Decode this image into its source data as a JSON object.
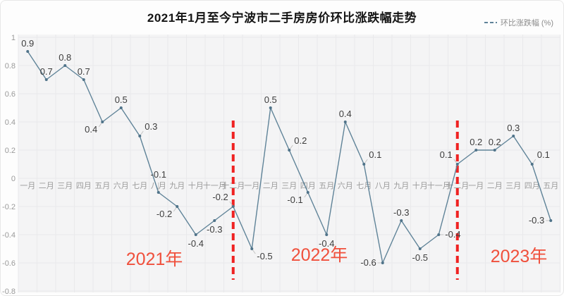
{
  "title": "2021年1月至今宁波市二手房房价环比涨跌幅走势",
  "legend": {
    "label": "环比涨跌幅 (%)"
  },
  "chart_data": {
    "type": "line",
    "series_name": "环比涨跌幅 (%)",
    "x": [
      "一月",
      "二月",
      "三月",
      "四月",
      "五月",
      "六月",
      "七月",
      "八月",
      "九月",
      "十月",
      "十一月",
      "十二月",
      "一月",
      "二月",
      "三月",
      "四月",
      "五月",
      "六月",
      "七月",
      "八月",
      "九月",
      "十月",
      "十一月",
      "十二月",
      "一月",
      "二月",
      "三月",
      "四月",
      "五月"
    ],
    "values": [
      0.9,
      0.7,
      0.8,
      0.7,
      0.4,
      0.5,
      0.3,
      -0.1,
      -0.2,
      -0.4,
      -0.3,
      -0.2,
      -0.5,
      0.5,
      0.2,
      -0.1,
      -0.4,
      0.4,
      0.1,
      -0.6,
      -0.3,
      -0.5,
      -0.4,
      0.1,
      0.2,
      0.2,
      0.3,
      0.1,
      -0.3
    ],
    "label_placements": [
      "top",
      "top",
      "top",
      "top",
      "bottom-left",
      "top",
      "top-right",
      "top-far",
      "bottom-left",
      "bottom",
      "bottom",
      "top-left",
      "bottom-right",
      "top",
      "top-right",
      "bottom-left",
      "bottom",
      "top",
      "top-right",
      "left",
      "top",
      "bottom",
      "right",
      "top-left",
      "top",
      "top",
      "top",
      "top-right",
      "left"
    ],
    "y_ticks": [
      "1",
      "0.8",
      "0.6",
      "0.4",
      "0.2",
      "0",
      "-0.2",
      "-0.4",
      "-0.6",
      "-0.8"
    ],
    "ylim": [
      -0.8,
      1
    ],
    "grid": true,
    "legend_position": "top-right",
    "year_dividers_at_index": [
      11,
      23
    ],
    "year_annotations": [
      {
        "text": "2021年"
      },
      {
        "text": "2022年"
      },
      {
        "text": "2023年"
      }
    ]
  },
  "colors": {
    "line": "#5f8398",
    "marker": "#4f7389",
    "data_label": "#3d3d3d",
    "axis_label": "#9a9a9a",
    "year_text": "#f0503c",
    "divider": "#ef2222",
    "plot_bg": "#f4f4f5",
    "grid_line": "#e9e9eb",
    "connector": "#c2c2c2",
    "legend_text": "#8c8c8c"
  }
}
